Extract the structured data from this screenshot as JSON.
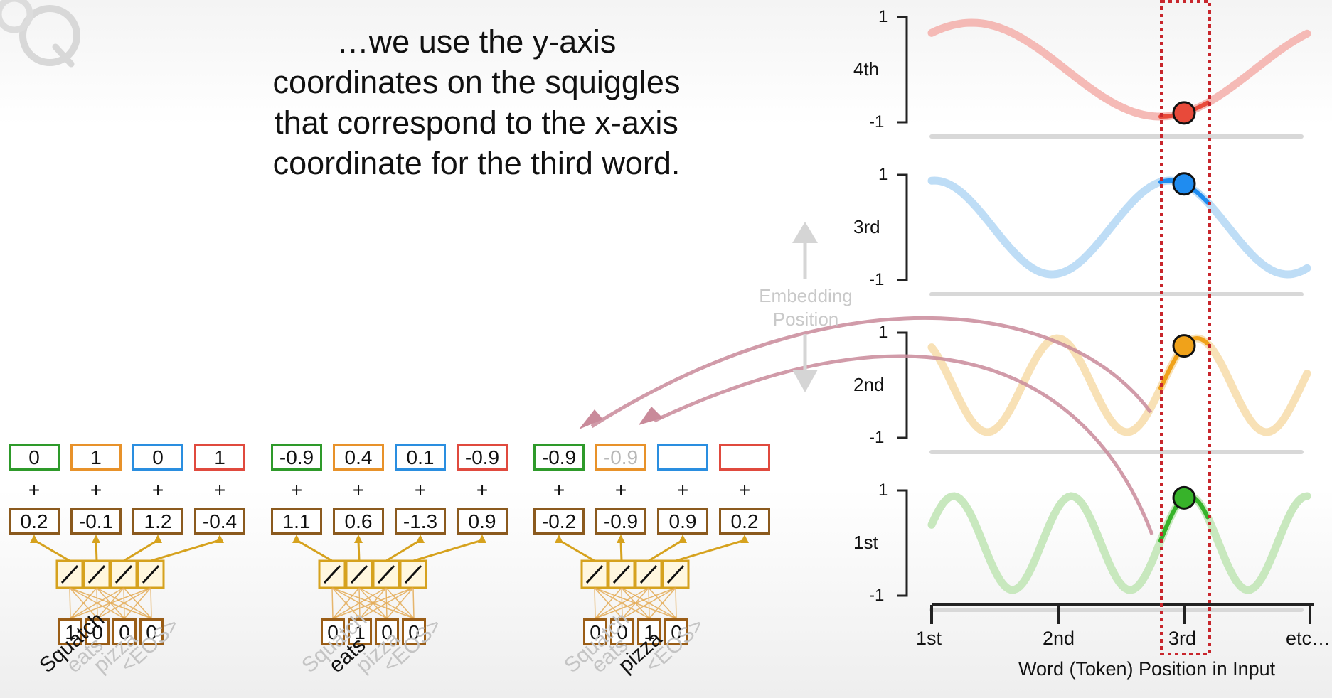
{
  "caption": [
    "…we use the y-axis",
    "coordinates on the squiggles",
    "that correspond to the x-axis",
    "coordinate for the third word."
  ],
  "embedding_label": [
    "Embedding",
    "Position"
  ],
  "colors": {
    "green": "#2e9a2a",
    "orange": "#e8922a",
    "blue": "#2a8ee0",
    "red": "#e04a3e",
    "brown": "#8b5a1e",
    "gold": "#d6a21e",
    "arrow_pink": "#c98a9a",
    "highlight": "#c8262c"
  },
  "groups": [
    {
      "top_values": [
        "0",
        "1",
        "0",
        "1"
      ],
      "bottom_values": [
        "0.2",
        "-0.1",
        "1.2",
        "-0.4"
      ],
      "onehot": [
        "1",
        "0",
        "0",
        "0"
      ],
      "words": [
        "Squatch",
        "eats",
        "pizza",
        "<EOS>"
      ],
      "active_word": 0
    },
    {
      "top_values": [
        "-0.9",
        "0.4",
        "0.1",
        "-0.9"
      ],
      "bottom_values": [
        "1.1",
        "0.6",
        "-1.3",
        "0.9"
      ],
      "onehot": [
        "0",
        "1",
        "0",
        "0"
      ],
      "words": [
        "Squatch",
        "eats",
        "pizza",
        "<EOS>"
      ],
      "active_word": 1
    },
    {
      "top_values": [
        "-0.9",
        "-0.9",
        "",
        ""
      ],
      "bottom_values": [
        "-0.2",
        "-0.9",
        "0.9",
        "0.2"
      ],
      "onehot": [
        "0",
        "0",
        "1",
        "0"
      ],
      "words": [
        "Squatch",
        "eats",
        "pizza",
        "<EOS>"
      ],
      "active_word": 2
    }
  ],
  "plus_sign": "+",
  "plots": {
    "panels": [
      {
        "label": "4th",
        "color": "#f4b3ae",
        "dot_color": "#e84a3a",
        "ytick_top": "1",
        "ytick_bottom": "-1"
      },
      {
        "label": "3rd",
        "color": "#b7d9f5",
        "dot_color": "#1f8cf0",
        "ytick_top": "1",
        "ytick_bottom": "-1"
      },
      {
        "label": "2nd",
        "color": "#f7deae",
        "dot_color": "#f0a21a",
        "ytick_top": "1",
        "ytick_bottom": "-1"
      },
      {
        "label": "1st",
        "color": "#c2e6b7",
        "dot_color": "#37b32a",
        "ytick_top": "1",
        "ytick_bottom": "-1"
      }
    ],
    "x_ticks": [
      "1st",
      "2nd",
      "3rd",
      "etc…"
    ],
    "x_label": "Word (Token) Position in Input"
  }
}
